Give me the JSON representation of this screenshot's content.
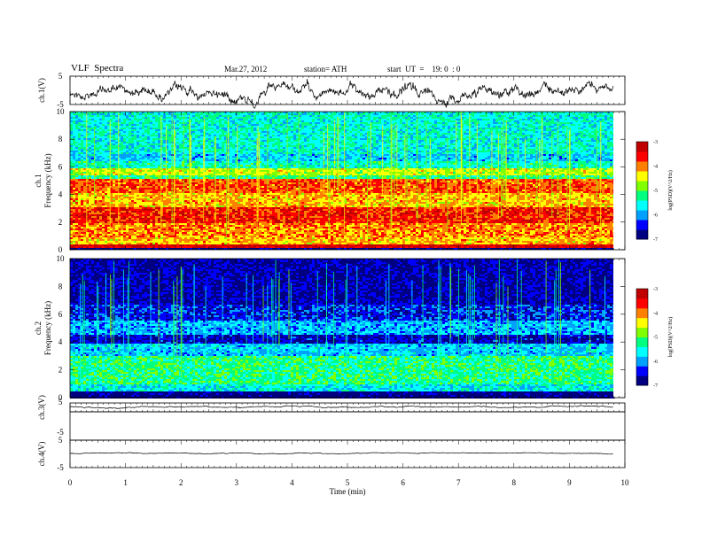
{
  "header": {
    "title": "VLF  Spectra",
    "date": "Mar.27, 2012",
    "station": "station= ATH",
    "start": "start  UT  =    19: 0  : 0"
  },
  "chart_data": [
    {
      "id": "ch1-waveform",
      "type": "line",
      "ylabel": "ch.1(V)",
      "yticks": [
        "5",
        "-5"
      ],
      "ylim": [
        -5,
        5
      ],
      "xlim": [
        0,
        9.8
      ],
      "description_series": "noisy trace oscillating roughly between -3 and 3"
    },
    {
      "id": "ch1-spectrogram",
      "type": "heatmap",
      "ylabel": "ch.1\nFrequency  (kHz)",
      "yticks": [
        "0",
        "2",
        "4",
        "6",
        "8",
        "10"
      ],
      "ylim": [
        0,
        10
      ],
      "colorbar": {
        "label": "log(PSD)(V^2/Hz)",
        "ticks": [
          "-3",
          "-4",
          "-5",
          "-6",
          "-7"
        ],
        "range": [
          -7,
          -3
        ]
      },
      "bands": [
        {
          "from": 0.0,
          "to": 0.2,
          "level": -6.8
        },
        {
          "from": 0.2,
          "to": 0.5,
          "level": -3.3
        },
        {
          "from": 0.5,
          "to": 1.0,
          "level": -4.2
        },
        {
          "from": 1.0,
          "to": 2.0,
          "level": -4.0
        },
        {
          "from": 2.0,
          "to": 3.2,
          "level": -3.6
        },
        {
          "from": 3.2,
          "to": 4.2,
          "level": -4.2
        },
        {
          "from": 4.2,
          "to": 5.2,
          "level": -3.8
        },
        {
          "from": 5.2,
          "to": 5.5,
          "level": -5.2
        },
        {
          "from": 5.5,
          "to": 6.0,
          "level": -4.6
        },
        {
          "from": 6.0,
          "to": 6.5,
          "level": -5.4
        },
        {
          "from": 6.5,
          "to": 7.0,
          "level": -5.8
        },
        {
          "from": 7.0,
          "to": 10.0,
          "level": -5.5
        }
      ]
    },
    {
      "id": "ch2-spectrogram",
      "type": "heatmap",
      "ylabel": "ch.2\nFrequency  (kHz)",
      "yticks": [
        "0",
        "2",
        "4",
        "6",
        "8",
        "10"
      ],
      "ylim": [
        0,
        10
      ],
      "colorbar": {
        "label": "log(PSD)(V^2/Hz)",
        "ticks": [
          "-3",
          "-4",
          "-5",
          "-6",
          "-7"
        ],
        "range": [
          -7,
          -3
        ]
      },
      "bands": [
        {
          "from": 0.0,
          "to": 0.5,
          "level": -6.9
        },
        {
          "from": 0.5,
          "to": 1.0,
          "level": -5.6
        },
        {
          "from": 1.0,
          "to": 3.0,
          "level": -5.2
        },
        {
          "from": 3.0,
          "to": 4.0,
          "level": -5.8
        },
        {
          "from": 4.0,
          "to": 4.6,
          "level": -6.6
        },
        {
          "from": 4.6,
          "to": 5.6,
          "level": -5.9
        },
        {
          "from": 5.6,
          "to": 6.8,
          "level": -6.4
        },
        {
          "from": 6.8,
          "to": 10.0,
          "level": -6.7
        }
      ]
    },
    {
      "id": "ch3-waveform",
      "type": "line",
      "ylabel": "ch.3(V)",
      "yticks": [
        "5"
      ],
      "ylim": [
        -5,
        5
      ],
      "xlim": [
        0,
        9.8
      ]
    },
    {
      "id": "ch4-waveform",
      "type": "line",
      "ylabel": "ch.4(V)",
      "yticks": [
        "5",
        "-5"
      ],
      "ylim": [
        -5,
        5
      ],
      "xlim": [
        0,
        9.8
      ]
    }
  ],
  "xaxis": {
    "label": "Time  (min)",
    "ticks": [
      "0",
      "1",
      "2",
      "3",
      "4",
      "5",
      "6",
      "7",
      "8",
      "9",
      "10"
    ],
    "range": [
      0,
      10
    ]
  },
  "colors": {
    "scale": [
      "#000080",
      "#0000ff",
      "#00a0ff",
      "#00ffff",
      "#00ff80",
      "#80ff00",
      "#ffff00",
      "#ff8000",
      "#ff0000",
      "#c00000"
    ]
  }
}
